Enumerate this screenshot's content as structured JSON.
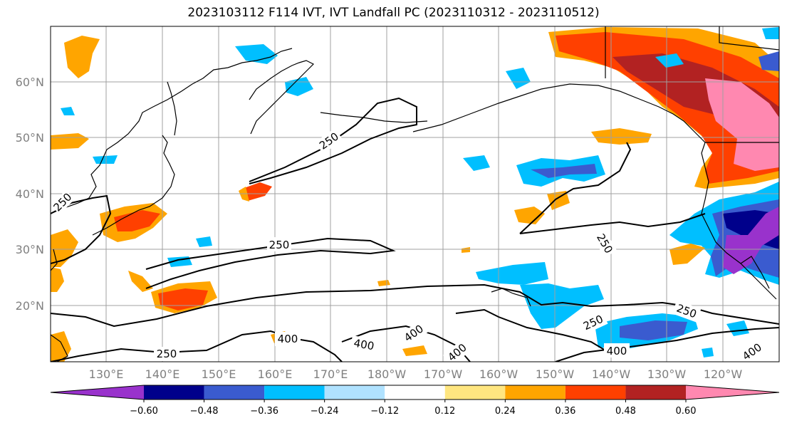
{
  "title": "2023103112 F114 IVT, IVT Landfall PC (2023110312 - 2023110512)",
  "lat_labels": [
    "60°N",
    "50°N",
    "40°N",
    "30°N",
    "20°N"
  ],
  "lon_labels": [
    "130°E",
    "140°E",
    "150°E",
    "160°E",
    "170°E",
    "180°W",
    "170°W",
    "160°W",
    "150°W",
    "140°W",
    "130°W",
    "120°W"
  ],
  "contour_labels": [
    "250",
    "250",
    "250",
    "250",
    "250",
    "250",
    "400",
    "400",
    "400",
    "400",
    "400",
    "250",
    "400"
  ],
  "colorbar": {
    "colors": [
      "#9932cc",
      "#00008b",
      "#3a5bcf",
      "#00bfff",
      "#b0e2ff",
      "#ffffff",
      "#ffe680",
      "#ffa500",
      "#ff4000",
      "#b22222",
      "#ff88b0"
    ],
    "tick_labels": [
      "−0.60",
      "−0.48",
      "−0.36",
      "−0.24",
      "−0.12",
      "0.12",
      "0.24",
      "0.36",
      "0.48",
      "0.60"
    ]
  },
  "palette": {
    "purple": "#9932cc",
    "navy": "#00008b",
    "blue": "#3a5bcf",
    "sky": "#00bfff",
    "pale_blue": "#b0e2ff",
    "yellow": "#ffe680",
    "orange": "#ffa500",
    "red_orange": "#ff4000",
    "dark_red": "#b22222",
    "pink": "#ff88b0"
  }
}
